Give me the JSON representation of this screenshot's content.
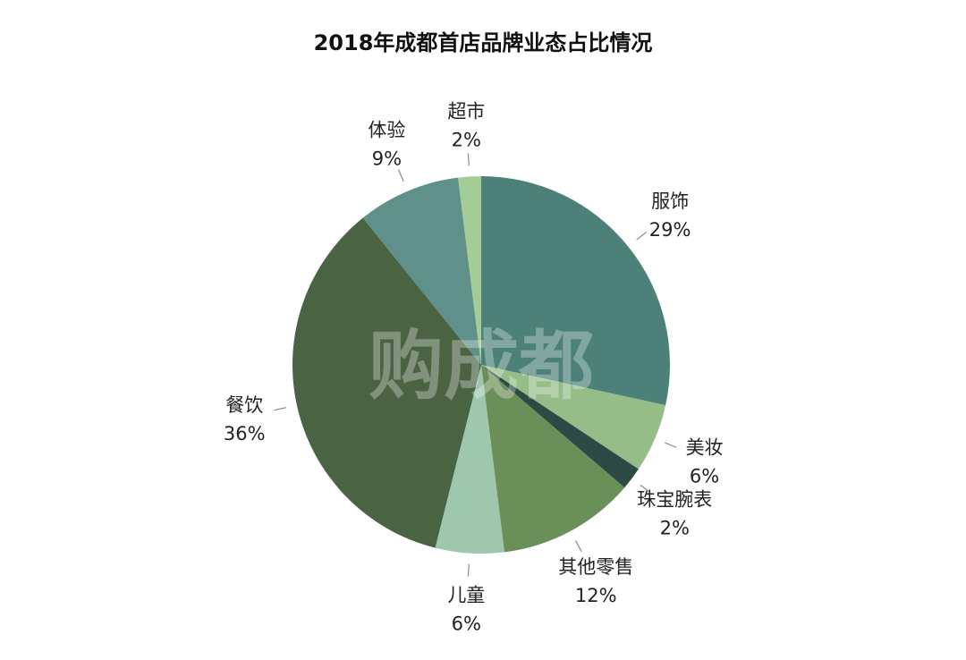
{
  "chart_data": {
    "type": "pie",
    "title": "2018年成都首店品牌业态占比情况",
    "watermark": "购成都",
    "slices": [
      {
        "label": "服饰",
        "value": 29,
        "value_label": "29%",
        "color": "#4d8078"
      },
      {
        "label": "美妆",
        "value": 6,
        "value_label": "6%",
        "color": "#96bd88"
      },
      {
        "label": "珠宝腕表",
        "value": 2,
        "value_label": "2%",
        "color": "#2d4a45"
      },
      {
        "label": "其他零售",
        "value": 12,
        "value_label": "12%",
        "color": "#6b8f58"
      },
      {
        "label": "儿童",
        "value": 6,
        "value_label": "6%",
        "color": "#9ec7ae"
      },
      {
        "label": "餐饮",
        "value": 36,
        "value_label": "36%",
        "color": "#4a6443"
      },
      {
        "label": "体验",
        "value": 9,
        "value_label": "9%",
        "color": "#5f918a"
      },
      {
        "label": "超市",
        "value": 2,
        "value_label": "2%",
        "color": "#a3cc97"
      }
    ]
  }
}
